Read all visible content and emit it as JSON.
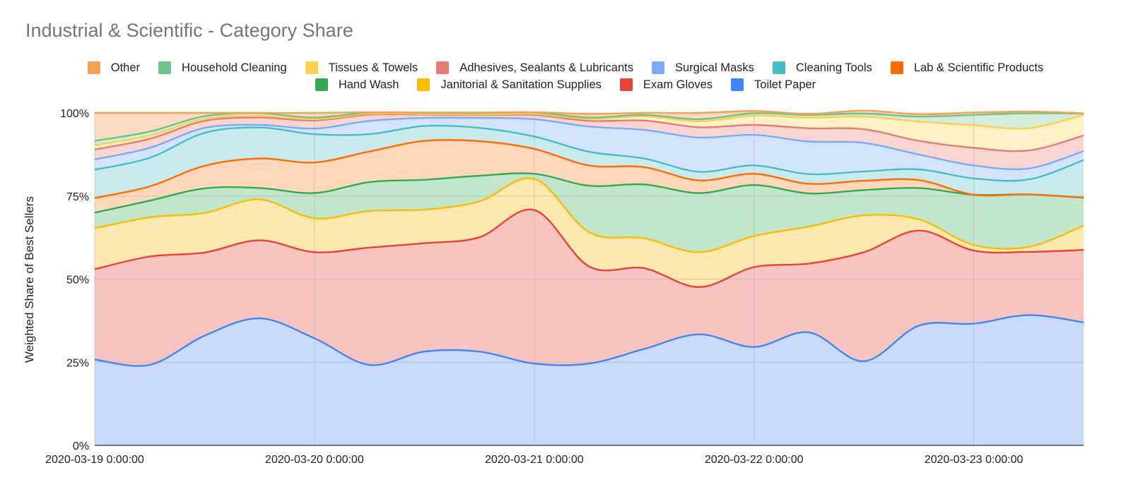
{
  "chart_data": {
    "type": "area",
    "stacked": true,
    "normalized": true,
    "smooth": true,
    "title": "Industrial & Scientific - Category Share",
    "xlabel": "",
    "ylabel": "Weighted Share of Best Sellers",
    "ylim": [
      0,
      100
    ],
    "y_ticks": [
      "0%",
      "25%",
      "50%",
      "75%",
      "100%"
    ],
    "x_range": [
      "2020-03-19 00:00",
      "2020-03-23 12:00"
    ],
    "x_ticks": [
      "2020-03-19 0:00:00",
      "2020-03-20 0:00:00",
      "2020-03-21 0:00:00",
      "2020-03-22 0:00:00",
      "2020-03-23 0:00:00"
    ],
    "grid": true,
    "legend_position": "top",
    "x": [
      "2020-03-19 00:00",
      "2020-03-19 06:00",
      "2020-03-19 12:00",
      "2020-03-19 18:00",
      "2020-03-20 00:00",
      "2020-03-20 06:00",
      "2020-03-20 12:00",
      "2020-03-20 18:00",
      "2020-03-21 00:00",
      "2020-03-21 06:00",
      "2020-03-21 12:00",
      "2020-03-21 18:00",
      "2020-03-22 00:00",
      "2020-03-22 06:00",
      "2020-03-22 12:00",
      "2020-03-22 18:00",
      "2020-03-23 00:00",
      "2020-03-23 06:00",
      "2020-03-23 12:00"
    ],
    "series": [
      {
        "name": "Toilet Paper",
        "color": "#4285f4",
        "fill": "#c9dafc",
        "values": [
          25.8,
          24.2,
          33,
          38.2,
          32.2,
          24.2,
          28.2,
          28.2,
          24.6,
          24.6,
          29,
          33.4,
          29.6,
          34,
          25.3,
          36,
          36.6,
          39.2,
          37
        ]
      },
      {
        "name": "Exam Gloves",
        "color": "#ea4335",
        "fill": "#f7c4c1",
        "values": [
          27.2,
          32.6,
          25,
          23.5,
          25.9,
          35.3,
          32.6,
          34.4,
          46.2,
          29.2,
          24.3,
          14.2,
          24,
          20.7,
          32.8,
          28.6,
          22,
          19,
          21.8
        ]
      },
      {
        "name": "Janitorial & Sanitation Supplies",
        "color": "#fbbc04",
        "fill": "#fde9b0",
        "values": [
          12.3,
          11.8,
          11.9,
          12.3,
          10.2,
          11,
          10.1,
          10.8,
          9.4,
          10.3,
          9,
          10.5,
          9.4,
          11.1,
          11.1,
          3.4,
          1.7,
          1.5,
          7.3
        ]
      },
      {
        "name": "Hand Wash",
        "color": "#34a853",
        "fill": "#c2e6cb",
        "values": [
          4.7,
          5,
          7.4,
          3.4,
          7.6,
          8.7,
          9,
          7.7,
          1.5,
          14,
          16.2,
          17.8,
          15.3,
          10,
          7.6,
          9.4,
          15.1,
          15.8,
          8.4
        ]
      },
      {
        "name": "Lab & Scientific Products",
        "color": "#ff6d01",
        "fill": "#ffd8bb",
        "values": [
          4.4,
          4.3,
          6.8,
          8.9,
          9.2,
          9.2,
          11.7,
          10.4,
          7.5,
          6.1,
          5.2,
          3.8,
          3.4,
          2.9,
          2.8,
          2.4,
          0,
          0,
          0
        ]
      },
      {
        "name": "Cleaning Tools",
        "color": "#46bdc6",
        "fill": "#c8eaed",
        "values": [
          8.5,
          8.6,
          9.9,
          9.3,
          8.5,
          5.2,
          4.5,
          4,
          3.7,
          4.1,
          2.6,
          2.6,
          2.5,
          2.9,
          2.8,
          3.2,
          4.9,
          4.5,
          11.3
        ]
      },
      {
        "name": "Surgical Masks",
        "color": "#7baaf7",
        "fill": "#d4e3fc",
        "values": [
          3.1,
          3,
          1.5,
          0.8,
          1.7,
          4,
          2.4,
          3,
          5.2,
          7.6,
          8.6,
          10.3,
          9.2,
          9.8,
          8.6,
          4.5,
          3.9,
          3.3,
          2.7
        ]
      },
      {
        "name": "Adhesives, Sealants & Lubricants",
        "color": "#e67c73",
        "fill": "#f9d5d2",
        "values": [
          3,
          2.7,
          2.1,
          2.2,
          2.4,
          1.9,
          1,
          0.8,
          1.3,
          1.7,
          2.8,
          3.1,
          3,
          4,
          4.1,
          4.1,
          5.3,
          5.4,
          4.7
        ]
      },
      {
        "name": "Tissues & Towels",
        "color": "#fcd04f",
        "fill": "#fef0c7",
        "values": [
          1.3,
          1,
          0.6,
          0.5,
          0.4,
          0.3,
          0.2,
          0.2,
          0.3,
          0.6,
          1.3,
          1.8,
          2.8,
          3.2,
          3.8,
          5.8,
          6.8,
          6.7,
          6.2
        ]
      },
      {
        "name": "Household Cleaning",
        "color": "#71c287",
        "fill": "#d4ecdb",
        "values": [
          1.3,
          1.2,
          0.8,
          0.8,
          0.5,
          0.3,
          0.3,
          0.4,
          0.4,
          0.4,
          0.4,
          0.6,
          0.7,
          0.8,
          0.9,
          1.5,
          3.1,
          4.5,
          0.4
        ]
      },
      {
        "name": "Other",
        "color": "#f6a053",
        "fill": "#fbdcc2",
        "values": [
          8.4,
          5.6,
          1,
          0.1,
          1.4,
          0.1,
          0.1,
          0.2,
          0.1,
          1.1,
          0.6,
          1.9,
          0.7,
          0.3,
          0.9,
          0.7,
          0.7,
          0.5,
          0.1
        ]
      }
    ]
  },
  "legend": {
    "rows": [
      [
        "Other",
        "Household Cleaning",
        "Tissues & Towels",
        "Adhesives, Sealants & Lubricants",
        "Surgical Masks",
        "Cleaning Tools",
        "Lab & Scientific Products"
      ],
      [
        "Hand Wash",
        "Janitorial & Sanitation Supplies",
        "Exam Gloves",
        "Toilet Paper"
      ]
    ]
  }
}
